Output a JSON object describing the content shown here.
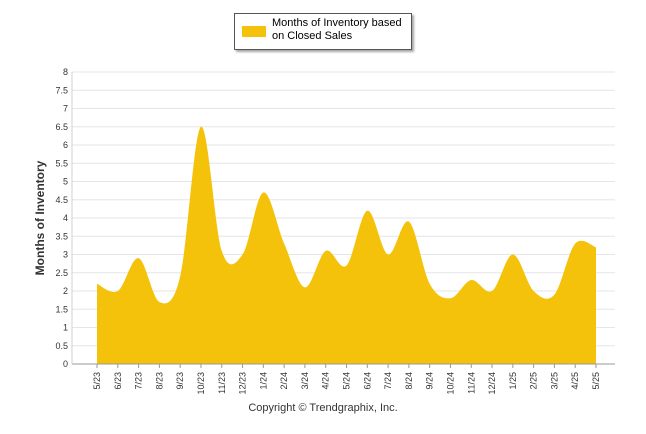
{
  "chart_data": {
    "type": "area",
    "categories": [
      "5/23",
      "6/23",
      "7/23",
      "8/23",
      "9/23",
      "10/23",
      "11/23",
      "12/23",
      "1/24",
      "2/24",
      "3/24",
      "4/24",
      "5/24",
      "6/24",
      "7/24",
      "8/24",
      "9/24",
      "10/24",
      "11/24",
      "12/24",
      "1/25",
      "2/25",
      "3/25",
      "4/25",
      "5/25"
    ],
    "series": [
      {
        "name": "Months of Inventory based on Closed Sales",
        "color": "#f5c20b",
        "values": [
          2.2,
          2.0,
          2.9,
          1.7,
          2.4,
          6.5,
          3.1,
          3.0,
          4.7,
          3.3,
          2.1,
          3.1,
          2.7,
          4.2,
          3.0,
          3.9,
          2.2,
          1.8,
          2.3,
          2.0,
          3.0,
          2.0,
          1.9,
          3.3,
          3.2
        ]
      }
    ],
    "ylabel": "Months of Inventory",
    "ylim": [
      0,
      8
    ],
    "yticks": [
      "0",
      "0.5",
      "1",
      "1.5",
      "2",
      "2.5",
      "3",
      "3.5",
      "4",
      "4.5",
      "5",
      "5.5",
      "6",
      "6.5",
      "7",
      "7.5",
      "8"
    ],
    "grid": true,
    "legend_position": "top-center"
  },
  "footer": {
    "copyright": "Copyright © Trendgraphix, Inc."
  }
}
